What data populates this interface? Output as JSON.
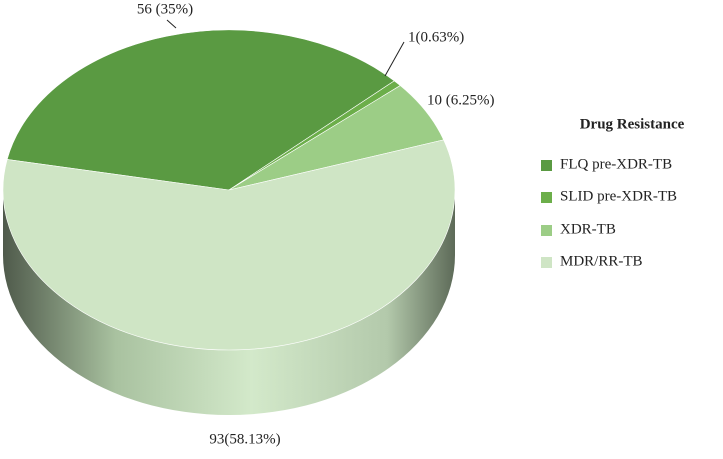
{
  "chart_data": {
    "type": "pie",
    "legend_title": "Drug Resistance",
    "categories": [
      "FLQ pre-XDR-TB",
      "SLID pre-XDR-TB",
      "XDR-TB",
      "MDR/RR-TB"
    ],
    "values": [
      56,
      1,
      10,
      93
    ],
    "value_labels": [
      "56 (35%)",
      "1(0.63%)",
      "10 (6.25%)",
      "93(58.13%)"
    ],
    "colors": [
      "#5a9a42",
      "#6cae4a",
      "#9ccd86",
      "#cfe5c5"
    ],
    "legend_position": "right"
  }
}
